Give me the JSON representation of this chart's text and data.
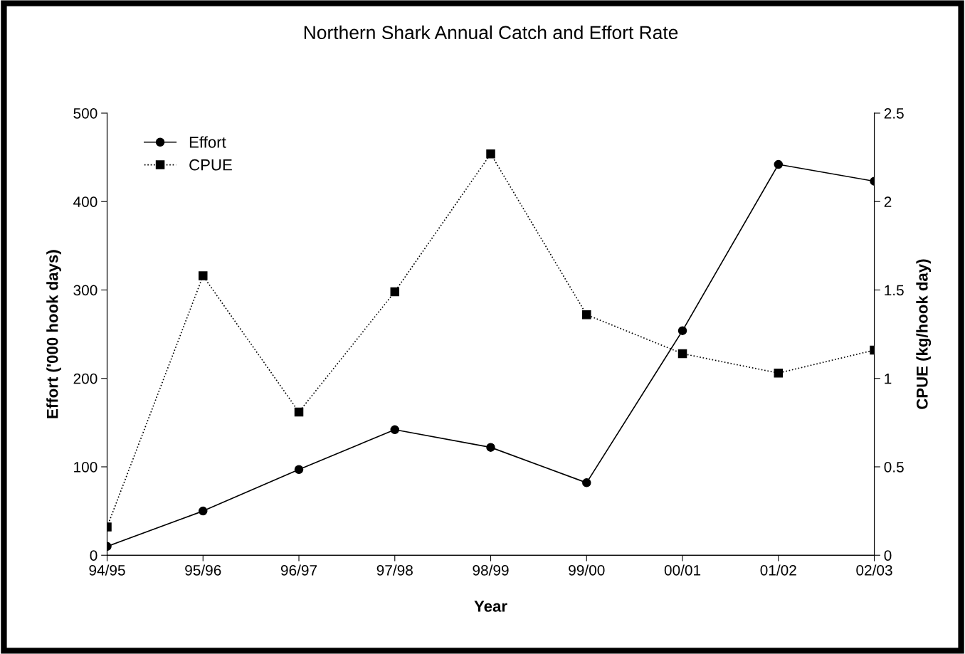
{
  "chart_data": {
    "type": "line",
    "title": "Northern Shark Annual Catch and Effort Rate",
    "xlabel": "Year",
    "ylabel": "Effort ('000 hook days)",
    "y2label": "CPUE (kg/hook day)",
    "categories": [
      "94/95",
      "95/96",
      "96/97",
      "97/98",
      "98/99",
      "99/00",
      "00/01",
      "01/02",
      "02/03"
    ],
    "series": [
      {
        "name": "Effort",
        "color": "#000000",
        "marker": "circle",
        "line_style": "solid",
        "values": [
          10,
          50,
          97,
          142,
          122,
          82,
          254,
          442,
          423
        ]
      },
      {
        "name": "CPUE",
        "color": "#000000",
        "marker": "square",
        "line_style": "dotted",
        "axis": "y2",
        "values": [
          0.16,
          1.58,
          0.81,
          1.49,
          2.27,
          1.36,
          1.14,
          1.03,
          1.16
        ]
      }
    ],
    "ylim": [
      0,
      500
    ],
    "yticks": [
      0,
      100,
      200,
      300,
      400,
      500
    ],
    "y2lim": [
      0,
      2.5
    ],
    "y2ticks": [
      0,
      0.5,
      1,
      1.5,
      2,
      2.5
    ],
    "legend": "top left",
    "grid": false
  }
}
